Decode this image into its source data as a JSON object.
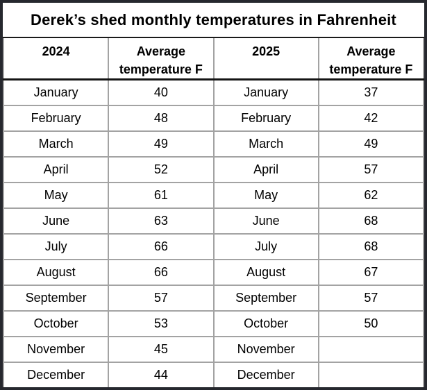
{
  "title": "Derek’s shed monthly temperatures in Fahrenheit",
  "table": {
    "headers": [
      "2024",
      "Average temperature F",
      "2025",
      "Average temperature F"
    ],
    "rows": [
      [
        "January",
        "40",
        "January",
        "37"
      ],
      [
        "February",
        "48",
        "February",
        "42"
      ],
      [
        "March",
        "49",
        "March",
        "49"
      ],
      [
        "April",
        "52",
        "April",
        "57"
      ],
      [
        "May",
        "61",
        "May",
        "62"
      ],
      [
        "June",
        "63",
        "June",
        "68"
      ],
      [
        "July",
        "66",
        "July",
        "68"
      ],
      [
        "August",
        "66",
        "August",
        "67"
      ],
      [
        "September",
        "57",
        "September",
        "57"
      ],
      [
        "October",
        "53",
        "October",
        "50"
      ],
      [
        "November",
        "45",
        "November",
        ""
      ],
      [
        "December",
        "44",
        "December",
        ""
      ]
    ]
  },
  "chart_data": {
    "type": "table",
    "title": "Derek’s shed monthly temperatures in Fahrenheit",
    "columns": [
      "2024",
      "Average temperature F",
      "2025",
      "Average temperature F"
    ],
    "rows": [
      [
        "January",
        40,
        "January",
        37
      ],
      [
        "February",
        48,
        "February",
        42
      ],
      [
        "March",
        49,
        "March",
        49
      ],
      [
        "April",
        52,
        "April",
        57
      ],
      [
        "May",
        61,
        "May",
        62
      ],
      [
        "June",
        63,
        "June",
        68
      ],
      [
        "July",
        66,
        "July",
        68
      ],
      [
        "August",
        66,
        "August",
        67
      ],
      [
        "September",
        57,
        "September",
        57
      ],
      [
        "October",
        53,
        "October",
        50
      ],
      [
        "November",
        45,
        "November",
        null
      ],
      [
        "December",
        44,
        "December",
        null
      ]
    ],
    "series": [
      {
        "name": "2024 Average temperature F",
        "values": [
          40,
          48,
          49,
          52,
          61,
          63,
          66,
          66,
          57,
          53,
          45,
          44
        ]
      },
      {
        "name": "2025 Average temperature F",
        "values": [
          37,
          42,
          49,
          57,
          62,
          68,
          68,
          67,
          57,
          50,
          null,
          null
        ]
      }
    ],
    "categories": [
      "January",
      "February",
      "March",
      "April",
      "May",
      "June",
      "July",
      "August",
      "September",
      "October",
      "November",
      "December"
    ]
  },
  "colors": {
    "frame": "#26282e",
    "grid": "#a3a3a3",
    "header_divider": "#141414",
    "background": "#ffffff",
    "text": "#000000"
  }
}
